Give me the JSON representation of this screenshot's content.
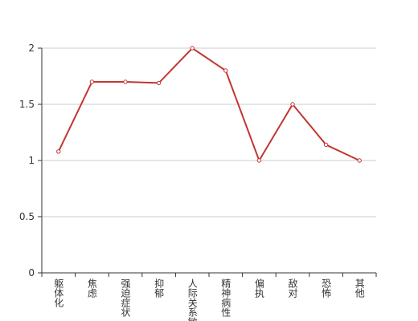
{
  "chart_data": {
    "type": "line",
    "categories": [
      "躯体化",
      "焦虑",
      "强迫症状",
      "抑郁",
      "人际关系敏感",
      "精神病性",
      "偏执",
      "敌对",
      "恐怖",
      "其他"
    ],
    "values": [
      1.08,
      1.7,
      1.7,
      1.69,
      2,
      1.8,
      1,
      1.5,
      1.14,
      1
    ],
    "color": "#c23531",
    "ylim": [
      0,
      2
    ],
    "yticks": [
      0,
      0.5,
      1,
      1.5,
      2
    ],
    "grid": true
  }
}
